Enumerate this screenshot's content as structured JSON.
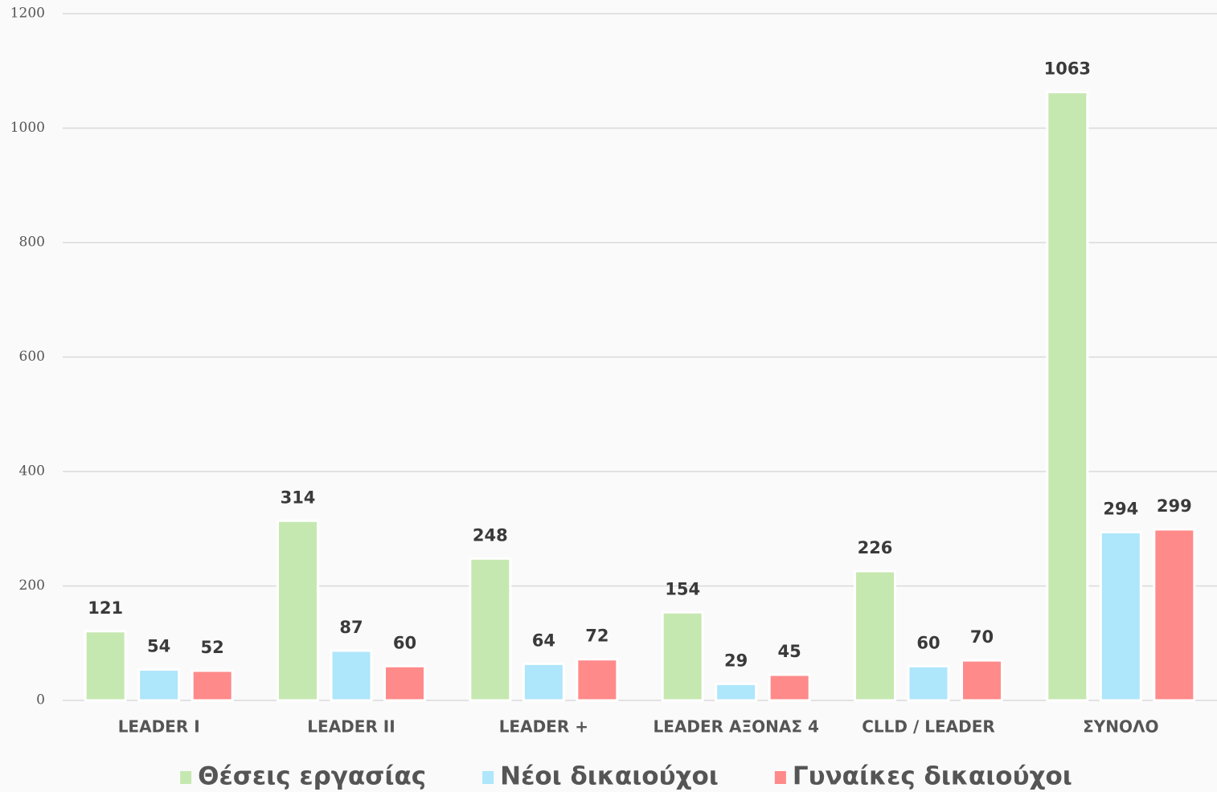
{
  "chart_data": {
    "type": "bar",
    "categories": [
      "LEADER I",
      "LEADER II",
      "LEADER +",
      "LEADER ΑΞΟΝΑΣ 4",
      "CLLD / LEADER",
      "ΣΥΝΟΛΟ"
    ],
    "series": [
      {
        "name": "Θέσεις εργασίας",
        "color": "#c5e8b0",
        "values": [
          121,
          314,
          248,
          154,
          226,
          1063
        ]
      },
      {
        "name": "Νέοι δικαιούχοι",
        "color": "#aee6fb",
        "values": [
          54,
          87,
          64,
          29,
          60,
          294
        ]
      },
      {
        "name": "Γυναίκες δικαιούχοι",
        "color": "#ff8a8a",
        "values": [
          52,
          60,
          72,
          45,
          70,
          299
        ]
      }
    ],
    "ylim": [
      0,
      1200
    ],
    "yticks": [
      0,
      200,
      400,
      600,
      800,
      1000,
      1200
    ],
    "grid": true,
    "legend": "bottom"
  }
}
